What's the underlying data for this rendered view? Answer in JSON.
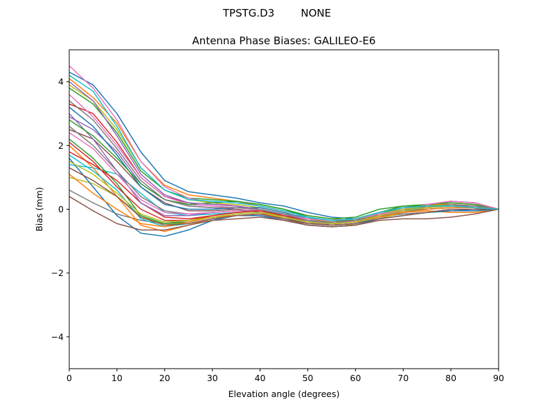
{
  "figure": {
    "suptitle": "TPSTG.D3        NONE"
  },
  "chart_data": {
    "type": "line",
    "title": "Antenna Phase Biases: GALILEO-E6",
    "xlabel": "Elevation angle (degrees)",
    "ylabel": "Bias (mm)",
    "xlim": [
      0,
      90
    ],
    "ylim": [
      -5,
      5
    ],
    "xticks": [
      0,
      10,
      20,
      30,
      40,
      50,
      60,
      70,
      80,
      90
    ],
    "yticks": [
      -4,
      -2,
      0,
      2,
      4
    ],
    "grid": false,
    "legend": "none",
    "x": [
      0,
      5,
      10,
      15,
      20,
      25,
      30,
      35,
      40,
      45,
      50,
      55,
      60,
      65,
      70,
      75,
      80,
      85,
      90
    ],
    "series": [
      {
        "color": "#1f77b4",
        "values": [
          4.3,
          3.9,
          3.0,
          1.8,
          0.9,
          0.55,
          0.45,
          0.35,
          0.2,
          0.1,
          -0.1,
          -0.25,
          -0.3,
          -0.2,
          -0.15,
          -0.1,
          -0.05,
          0.0,
          0.0
        ]
      },
      {
        "color": "#ff7f0e",
        "values": [
          4.1,
          3.5,
          2.7,
          1.5,
          0.75,
          0.45,
          0.35,
          0.25,
          0.1,
          -0.05,
          -0.2,
          -0.3,
          -0.35,
          -0.2,
          -0.1,
          -0.05,
          -0.1,
          -0.1,
          0.0
        ]
      },
      {
        "color": "#2ca02c",
        "values": [
          3.8,
          3.3,
          2.4,
          1.2,
          0.6,
          0.35,
          0.3,
          0.25,
          0.15,
          0.0,
          -0.25,
          -0.45,
          -0.4,
          -0.15,
          0.05,
          0.1,
          0.15,
          0.1,
          0.0
        ]
      },
      {
        "color": "#d62728",
        "values": [
          3.3,
          3.0,
          2.1,
          1.0,
          0.4,
          0.2,
          0.15,
          0.1,
          0.0,
          -0.2,
          -0.4,
          -0.5,
          -0.45,
          -0.25,
          -0.05,
          0.15,
          0.25,
          0.2,
          0.0
        ]
      },
      {
        "color": "#9467bd",
        "values": [
          2.9,
          2.5,
          1.8,
          0.8,
          0.3,
          0.1,
          0.05,
          0.0,
          -0.05,
          -0.25,
          -0.45,
          -0.45,
          -0.35,
          -0.2,
          -0.1,
          0.0,
          0.05,
          0.05,
          0.0
        ]
      },
      {
        "color": "#8c564b",
        "values": [
          2.5,
          2.2,
          1.5,
          0.7,
          0.2,
          -0.05,
          -0.05,
          0.0,
          -0.1,
          -0.3,
          -0.5,
          -0.55,
          -0.5,
          -0.3,
          -0.1,
          0.1,
          0.25,
          0.2,
          0.0
        ]
      },
      {
        "color": "#e377c2",
        "values": [
          4.5,
          3.8,
          2.8,
          1.5,
          0.7,
          0.35,
          0.2,
          0.1,
          -0.05,
          -0.2,
          -0.35,
          -0.4,
          -0.3,
          -0.1,
          0.05,
          0.15,
          0.2,
          0.15,
          0.0
        ]
      },
      {
        "color": "#7f7f7f",
        "values": [
          0.6,
          0.2,
          -0.15,
          -0.35,
          -0.45,
          -0.35,
          -0.25,
          -0.2,
          -0.2,
          -0.3,
          -0.4,
          -0.45,
          -0.4,
          -0.25,
          -0.15,
          -0.1,
          -0.05,
          -0.05,
          0.0
        ]
      },
      {
        "color": "#bcbd22",
        "values": [
          1.0,
          0.8,
          0.4,
          -0.2,
          -0.5,
          -0.4,
          -0.25,
          -0.15,
          -0.1,
          -0.2,
          -0.35,
          -0.45,
          -0.5,
          -0.3,
          -0.1,
          0.05,
          0.15,
          0.1,
          0.0
        ]
      },
      {
        "color": "#17becf",
        "values": [
          1.4,
          1.3,
          1.1,
          0.5,
          -0.1,
          -0.2,
          -0.15,
          -0.1,
          -0.05,
          -0.15,
          -0.25,
          -0.35,
          -0.3,
          -0.15,
          0.0,
          0.05,
          0.1,
          0.05,
          0.0
        ]
      },
      {
        "color": "#1f77b4",
        "values": [
          1.6,
          0.7,
          -0.2,
          -0.75,
          -0.85,
          -0.65,
          -0.35,
          -0.2,
          -0.2,
          -0.35,
          -0.5,
          -0.55,
          -0.5,
          -0.3,
          -0.2,
          -0.1,
          -0.05,
          -0.05,
          0.0
        ]
      },
      {
        "color": "#ff7f0e",
        "values": [
          2.0,
          1.3,
          0.4,
          -0.5,
          -0.7,
          -0.5,
          -0.3,
          -0.2,
          -0.15,
          -0.3,
          -0.45,
          -0.5,
          -0.45,
          -0.2,
          0.0,
          0.1,
          0.2,
          0.15,
          0.0
        ]
      },
      {
        "color": "#2ca02c",
        "values": [
          2.2,
          1.6,
          0.8,
          -0.2,
          -0.45,
          -0.4,
          -0.25,
          -0.15,
          -0.1,
          -0.25,
          -0.4,
          -0.4,
          -0.3,
          -0.1,
          0.1,
          0.15,
          0.2,
          0.15,
          0.0
        ]
      },
      {
        "color": "#d62728",
        "values": [
          1.8,
          1.4,
          0.9,
          0.2,
          -0.25,
          -0.3,
          -0.2,
          -0.1,
          -0.05,
          -0.2,
          -0.35,
          -0.4,
          -0.35,
          -0.15,
          0.0,
          0.1,
          0.15,
          0.1,
          0.0
        ]
      },
      {
        "color": "#9467bd",
        "values": [
          3.0,
          2.2,
          1.2,
          0.2,
          -0.2,
          -0.2,
          -0.1,
          -0.05,
          -0.05,
          -0.2,
          -0.35,
          -0.4,
          -0.35,
          -0.2,
          -0.05,
          0.05,
          0.1,
          0.05,
          0.0
        ]
      },
      {
        "color": "#8c564b",
        "values": [
          0.4,
          -0.05,
          -0.45,
          -0.65,
          -0.65,
          -0.5,
          -0.35,
          -0.3,
          -0.25,
          -0.35,
          -0.5,
          -0.55,
          -0.5,
          -0.35,
          -0.3,
          -0.3,
          -0.25,
          -0.15,
          0.0
        ]
      },
      {
        "color": "#e377c2",
        "values": [
          3.6,
          2.9,
          2.0,
          1.0,
          0.4,
          0.15,
          0.1,
          0.05,
          0.0,
          -0.15,
          -0.3,
          -0.35,
          -0.3,
          -0.15,
          0.0,
          0.15,
          0.25,
          0.2,
          0.0
        ]
      },
      {
        "color": "#7f7f7f",
        "values": [
          2.6,
          2.0,
          1.2,
          0.4,
          -0.05,
          -0.15,
          -0.1,
          -0.05,
          -0.05,
          -0.2,
          -0.4,
          -0.45,
          -0.4,
          -0.2,
          -0.05,
          0.05,
          0.1,
          0.1,
          0.0
        ]
      },
      {
        "color": "#bcbd22",
        "values": [
          3.9,
          3.4,
          2.5,
          1.3,
          0.6,
          0.3,
          0.2,
          0.15,
          0.05,
          -0.1,
          -0.3,
          -0.4,
          -0.35,
          -0.15,
          0.0,
          0.1,
          0.15,
          0.1,
          0.0
        ]
      },
      {
        "color": "#17becf",
        "values": [
          1.7,
          1.2,
          0.6,
          -0.3,
          -0.55,
          -0.45,
          -0.3,
          -0.2,
          -0.15,
          -0.3,
          -0.45,
          -0.5,
          -0.45,
          -0.25,
          -0.1,
          0.0,
          0.05,
          0.05,
          0.0
        ]
      },
      {
        "color": "#1f77b4",
        "values": [
          3.2,
          2.6,
          1.7,
          0.7,
          0.15,
          0.0,
          0.0,
          0.05,
          0.05,
          -0.1,
          -0.3,
          -0.35,
          -0.3,
          -0.15,
          -0.05,
          0.0,
          0.05,
          0.05,
          0.0
        ]
      },
      {
        "color": "#ff7f0e",
        "values": [
          1.1,
          0.5,
          0.0,
          -0.45,
          -0.55,
          -0.4,
          -0.25,
          -0.2,
          -0.15,
          -0.25,
          -0.4,
          -0.45,
          -0.4,
          -0.25,
          -0.1,
          0.0,
          0.05,
          0.05,
          0.0
        ]
      },
      {
        "color": "#2ca02c",
        "values": [
          2.8,
          2.3,
          1.6,
          0.8,
          0.3,
          0.15,
          0.2,
          0.25,
          0.15,
          0.0,
          -0.2,
          -0.3,
          -0.25,
          0.0,
          0.1,
          0.1,
          0.1,
          0.05,
          0.0
        ]
      },
      {
        "color": "#d62728",
        "values": [
          2.1,
          1.5,
          0.7,
          0.0,
          -0.35,
          -0.35,
          -0.2,
          -0.1,
          -0.05,
          -0.2,
          -0.35,
          -0.4,
          -0.35,
          -0.2,
          -0.05,
          0.05,
          0.1,
          0.05,
          0.0
        ]
      },
      {
        "color": "#9467bd",
        "values": [
          4.0,
          3.4,
          2.3,
          1.1,
          0.45,
          0.2,
          0.15,
          0.1,
          0.0,
          -0.15,
          -0.35,
          -0.45,
          -0.4,
          -0.2,
          -0.05,
          0.05,
          0.1,
          0.1,
          0.0
        ]
      },
      {
        "color": "#8c564b",
        "values": [
          1.3,
          0.9,
          0.4,
          -0.25,
          -0.5,
          -0.45,
          -0.3,
          -0.2,
          -0.15,
          -0.3,
          -0.45,
          -0.5,
          -0.45,
          -0.3,
          -0.2,
          -0.1,
          0.0,
          0.0,
          0.0
        ]
      },
      {
        "color": "#e377c2",
        "values": [
          2.4,
          1.9,
          1.1,
          0.3,
          -0.1,
          -0.15,
          -0.1,
          -0.05,
          0.0,
          -0.15,
          -0.3,
          -0.35,
          -0.3,
          -0.15,
          -0.05,
          0.05,
          0.1,
          0.05,
          0.0
        ]
      },
      {
        "color": "#7f7f7f",
        "values": [
          3.4,
          2.8,
          1.9,
          0.9,
          0.3,
          0.1,
          0.05,
          0.05,
          0.0,
          -0.15,
          -0.35,
          -0.4,
          -0.35,
          -0.2,
          -0.05,
          0.05,
          0.15,
          0.1,
          0.0
        ]
      },
      {
        "color": "#bcbd22",
        "values": [
          1.5,
          1.1,
          0.5,
          -0.15,
          -0.4,
          -0.35,
          -0.25,
          -0.15,
          -0.1,
          -0.25,
          -0.4,
          -0.45,
          -0.4,
          -0.2,
          -0.05,
          0.05,
          0.1,
          0.05,
          0.0
        ]
      },
      {
        "color": "#17becf",
        "values": [
          4.2,
          3.7,
          2.6,
          1.3,
          0.6,
          0.3,
          0.25,
          0.2,
          0.1,
          -0.05,
          -0.25,
          -0.35,
          -0.3,
          -0.1,
          0.05,
          0.1,
          0.1,
          0.05,
          0.0
        ]
      }
    ]
  }
}
